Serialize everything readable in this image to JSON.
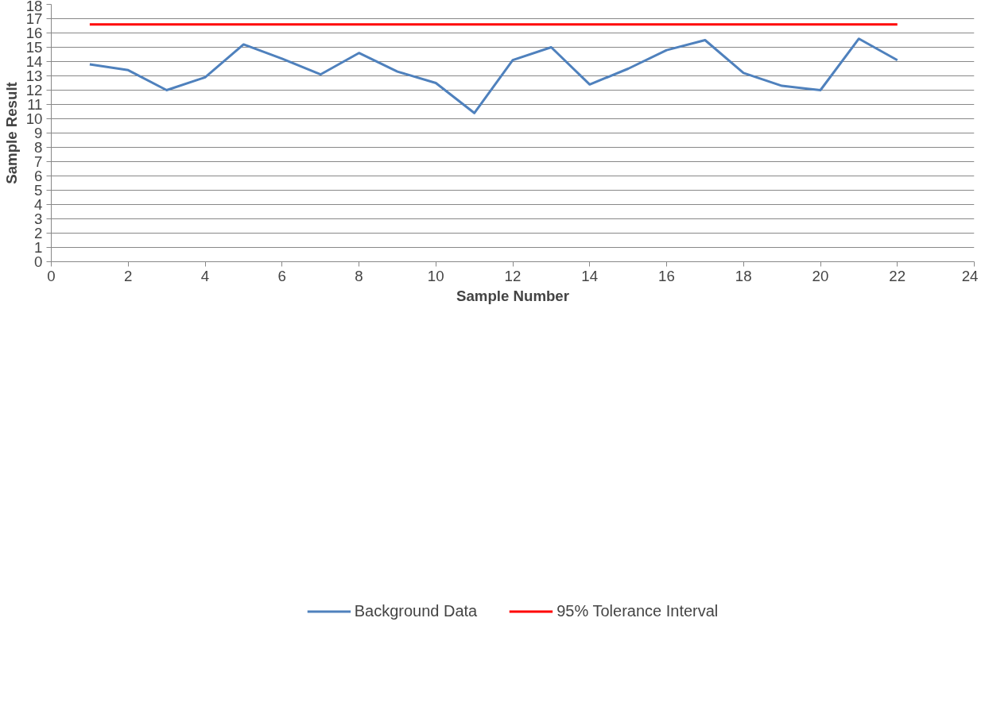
{
  "chart_data": {
    "type": "line",
    "xlabel": "Sample Number",
    "ylabel": "Sample Result",
    "xlim": [
      0,
      24
    ],
    "xticks": [
      0,
      2,
      4,
      6,
      8,
      10,
      12,
      14,
      16,
      18,
      20,
      22,
      24
    ],
    "ylim": [
      0,
      18
    ],
    "yticks": [
      0,
      1,
      2,
      3,
      4,
      5,
      6,
      7,
      8,
      9,
      10,
      11,
      12,
      13,
      14,
      15,
      16,
      17,
      18
    ],
    "grid": "y",
    "legend": "bottom",
    "marker": "none",
    "line_style": "solid",
    "series": [
      {
        "name": "Background Data",
        "color": "#4f81bd",
        "x": [
          1,
          2,
          3,
          4,
          5,
          6,
          7,
          8,
          9,
          10,
          11,
          12,
          13,
          14,
          15,
          16,
          17,
          18,
          19,
          20,
          21,
          22
        ],
        "values": [
          13.8,
          13.4,
          12.0,
          12.9,
          15.2,
          14.2,
          13.1,
          14.6,
          13.3,
          12.5,
          10.4,
          14.1,
          15.0,
          12.4,
          13.5,
          14.8,
          15.5,
          13.2,
          12.3,
          12.0,
          15.6,
          14.1
        ]
      },
      {
        "name": "95% Tolerance Interval",
        "color": "#ff0000",
        "x": [
          1,
          22
        ],
        "values": [
          16.6,
          16.6
        ]
      }
    ]
  }
}
